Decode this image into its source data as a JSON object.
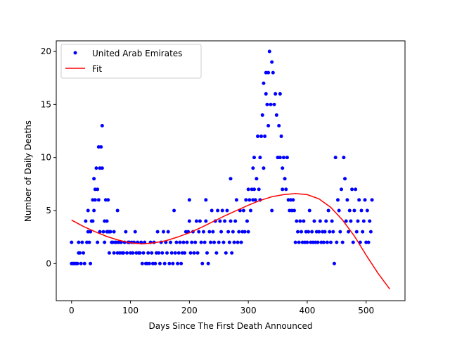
{
  "chart_data": {
    "type": "scatter",
    "title": "",
    "xlabel": "Days Since The First Death Announced",
    "ylabel": "Number of Daily Deaths",
    "xlim": [
      -26,
      566
    ],
    "ylim": [
      -3.5,
      21
    ],
    "xticks": [
      0,
      100,
      200,
      300,
      400,
      500
    ],
    "yticks": [
      0,
      5,
      10,
      15,
      20
    ],
    "grid": false,
    "legend": "top-left",
    "series": [
      {
        "name": "United Arab Emirates",
        "kind": "points",
        "color": "#0000ff",
        "points": [
          [
            0,
            0
          ],
          [
            0,
            2
          ],
          [
            2,
            0
          ],
          [
            4,
            0
          ],
          [
            6,
            0
          ],
          [
            8,
            0
          ],
          [
            10,
            0
          ],
          [
            12,
            1
          ],
          [
            12,
            2
          ],
          [
            14,
            1
          ],
          [
            16,
            0
          ],
          [
            18,
            2
          ],
          [
            20,
            1
          ],
          [
            22,
            0
          ],
          [
            24,
            4
          ],
          [
            26,
            2
          ],
          [
            28,
            3
          ],
          [
            28,
            5
          ],
          [
            30,
            2
          ],
          [
            32,
            0
          ],
          [
            32,
            3
          ],
          [
            34,
            4
          ],
          [
            36,
            6
          ],
          [
            36,
            4
          ],
          [
            38,
            8
          ],
          [
            38,
            5
          ],
          [
            40,
            7
          ],
          [
            40,
            6
          ],
          [
            42,
            9
          ],
          [
            44,
            7
          ],
          [
            44,
            2
          ],
          [
            46,
            6
          ],
          [
            46,
            11
          ],
          [
            48,
            9
          ],
          [
            48,
            3
          ],
          [
            50,
            11
          ],
          [
            52,
            13
          ],
          [
            52,
            9
          ],
          [
            54,
            3
          ],
          [
            56,
            4
          ],
          [
            56,
            2
          ],
          [
            58,
            6
          ],
          [
            60,
            4
          ],
          [
            60,
            3
          ],
          [
            62,
            6
          ],
          [
            62,
            3
          ],
          [
            64,
            1
          ],
          [
            64,
            3
          ],
          [
            66,
            3
          ],
          [
            68,
            2
          ],
          [
            70,
            2
          ],
          [
            72,
            3
          ],
          [
            72,
            1
          ],
          [
            74,
            2
          ],
          [
            76,
            2
          ],
          [
            78,
            5
          ],
          [
            78,
            1
          ],
          [
            80,
            2
          ],
          [
            82,
            1
          ],
          [
            84,
            2
          ],
          [
            86,
            1
          ],
          [
            88,
            1
          ],
          [
            90,
            2
          ],
          [
            92,
            3
          ],
          [
            94,
            1
          ],
          [
            96,
            2
          ],
          [
            98,
            2
          ],
          [
            100,
            1
          ],
          [
            102,
            2
          ],
          [
            104,
            1
          ],
          [
            106,
            2
          ],
          [
            108,
            3
          ],
          [
            110,
            1
          ],
          [
            112,
            2
          ],
          [
            114,
            1
          ],
          [
            116,
            1
          ],
          [
            118,
            2
          ],
          [
            120,
            0
          ],
          [
            122,
            1
          ],
          [
            124,
            2
          ],
          [
            126,
            0
          ],
          [
            128,
            0
          ],
          [
            130,
            1
          ],
          [
            132,
            0
          ],
          [
            134,
            2
          ],
          [
            136,
            1
          ],
          [
            138,
            0
          ],
          [
            140,
            2
          ],
          [
            142,
            0
          ],
          [
            144,
            1
          ],
          [
            146,
            3
          ],
          [
            148,
            1
          ],
          [
            150,
            0
          ],
          [
            152,
            2
          ],
          [
            154,
            1
          ],
          [
            156,
            3
          ],
          [
            158,
            0
          ],
          [
            160,
            2
          ],
          [
            162,
            1
          ],
          [
            164,
            3
          ],
          [
            166,
            0
          ],
          [
            168,
            2
          ],
          [
            170,
            1
          ],
          [
            172,
            0
          ],
          [
            174,
            5
          ],
          [
            176,
            1
          ],
          [
            178,
            2
          ],
          [
            180,
            0
          ],
          [
            182,
            1
          ],
          [
            184,
            2
          ],
          [
            186,
            0
          ],
          [
            188,
            1
          ],
          [
            190,
            2
          ],
          [
            192,
            1
          ],
          [
            194,
            3
          ],
          [
            196,
            2
          ],
          [
            198,
            3
          ],
          [
            200,
            4
          ],
          [
            200,
            6
          ],
          [
            202,
            1
          ],
          [
            204,
            2
          ],
          [
            206,
            3
          ],
          [
            208,
            1
          ],
          [
            210,
            2
          ],
          [
            212,
            4
          ],
          [
            214,
            1
          ],
          [
            216,
            3
          ],
          [
            218,
            4
          ],
          [
            220,
            2
          ],
          [
            222,
            0
          ],
          [
            224,
            3
          ],
          [
            226,
            2
          ],
          [
            228,
            6
          ],
          [
            228,
            4
          ],
          [
            230,
            1
          ],
          [
            232,
            0
          ],
          [
            234,
            3
          ],
          [
            236,
            2
          ],
          [
            238,
            5
          ],
          [
            240,
            3
          ],
          [
            242,
            2
          ],
          [
            244,
            4
          ],
          [
            246,
            1
          ],
          [
            248,
            5
          ],
          [
            250,
            2
          ],
          [
            252,
            4
          ],
          [
            254,
            3
          ],
          [
            256,
            5
          ],
          [
            258,
            2
          ],
          [
            260,
            4
          ],
          [
            262,
            1
          ],
          [
            264,
            5
          ],
          [
            266,
            3
          ],
          [
            268,
            2
          ],
          [
            270,
            8
          ],
          [
            270,
            4
          ],
          [
            272,
            1
          ],
          [
            274,
            3
          ],
          [
            276,
            2
          ],
          [
            278,
            4
          ],
          [
            280,
            6
          ],
          [
            282,
            2
          ],
          [
            284,
            3
          ],
          [
            286,
            5
          ],
          [
            288,
            2
          ],
          [
            290,
            3
          ],
          [
            292,
            5
          ],
          [
            294,
            3
          ],
          [
            296,
            6
          ],
          [
            298,
            4
          ],
          [
            300,
            7
          ],
          [
            300,
            3
          ],
          [
            302,
            6
          ],
          [
            304,
            5
          ],
          [
            306,
            7
          ],
          [
            308,
            9
          ],
          [
            308,
            6
          ],
          [
            310,
            10
          ],
          [
            310,
            7
          ],
          [
            312,
            6
          ],
          [
            314,
            8
          ],
          [
            316,
            12
          ],
          [
            318,
            7
          ],
          [
            320,
            10
          ],
          [
            320,
            6
          ],
          [
            322,
            12
          ],
          [
            324,
            14
          ],
          [
            326,
            9
          ],
          [
            326,
            17
          ],
          [
            328,
            12
          ],
          [
            330,
            16
          ],
          [
            330,
            18
          ],
          [
            332,
            15
          ],
          [
            334,
            13
          ],
          [
            334,
            18
          ],
          [
            336,
            20
          ],
          [
            338,
            15
          ],
          [
            340,
            19
          ],
          [
            340,
            5
          ],
          [
            342,
            18
          ],
          [
            344,
            15
          ],
          [
            346,
            16
          ],
          [
            348,
            14
          ],
          [
            350,
            10
          ],
          [
            352,
            13
          ],
          [
            354,
            10
          ],
          [
            354,
            16
          ],
          [
            356,
            12
          ],
          [
            358,
            9
          ],
          [
            358,
            7
          ],
          [
            360,
            10
          ],
          [
            362,
            8
          ],
          [
            364,
            7
          ],
          [
            366,
            10
          ],
          [
            368,
            6
          ],
          [
            370,
            5
          ],
          [
            372,
            6
          ],
          [
            374,
            5
          ],
          [
            376,
            6
          ],
          [
            378,
            5
          ],
          [
            380,
            2
          ],
          [
            382,
            4
          ],
          [
            384,
            3
          ],
          [
            386,
            2
          ],
          [
            388,
            4
          ],
          [
            390,
            3
          ],
          [
            392,
            2
          ],
          [
            394,
            4
          ],
          [
            396,
            2
          ],
          [
            398,
            3
          ],
          [
            400,
            2
          ],
          [
            402,
            3
          ],
          [
            404,
            5
          ],
          [
            406,
            2
          ],
          [
            408,
            3
          ],
          [
            410,
            2
          ],
          [
            412,
            4
          ],
          [
            414,
            2
          ],
          [
            416,
            3
          ],
          [
            418,
            2
          ],
          [
            420,
            3
          ],
          [
            422,
            4
          ],
          [
            424,
            2
          ],
          [
            426,
            3
          ],
          [
            428,
            2
          ],
          [
            430,
            3
          ],
          [
            432,
            4
          ],
          [
            434,
            2
          ],
          [
            436,
            5
          ],
          [
            438,
            3
          ],
          [
            440,
            2
          ],
          [
            442,
            4
          ],
          [
            444,
            3
          ],
          [
            446,
            0
          ],
          [
            448,
            10
          ],
          [
            450,
            2
          ],
          [
            452,
            6
          ],
          [
            454,
            5
          ],
          [
            456,
            3
          ],
          [
            458,
            7
          ],
          [
            460,
            2
          ],
          [
            462,
            10
          ],
          [
            464,
            8
          ],
          [
            466,
            4
          ],
          [
            468,
            6
          ],
          [
            470,
            3
          ],
          [
            472,
            5
          ],
          [
            474,
            4
          ],
          [
            476,
            7
          ],
          [
            478,
            2
          ],
          [
            480,
            5
          ],
          [
            482,
            7
          ],
          [
            484,
            3
          ],
          [
            486,
            4
          ],
          [
            488,
            6
          ],
          [
            490,
            2
          ],
          [
            492,
            5
          ],
          [
            494,
            3
          ],
          [
            496,
            4
          ],
          [
            498,
            6
          ],
          [
            500,
            2
          ],
          [
            502,
            5
          ],
          [
            504,
            2
          ],
          [
            506,
            4
          ],
          [
            508,
            3
          ],
          [
            510,
            6
          ]
        ]
      },
      {
        "name": "Fit",
        "kind": "line",
        "color": "#ff0000",
        "points": [
          [
            0,
            4.1
          ],
          [
            20,
            3.5
          ],
          [
            40,
            3.0
          ],
          [
            60,
            2.55
          ],
          [
            80,
            2.2
          ],
          [
            100,
            1.95
          ],
          [
            120,
            1.85
          ],
          [
            140,
            1.95
          ],
          [
            160,
            2.15
          ],
          [
            180,
            2.5
          ],
          [
            200,
            2.9
          ],
          [
            220,
            3.4
          ],
          [
            240,
            3.95
          ],
          [
            260,
            4.5
          ],
          [
            280,
            5.0
          ],
          [
            300,
            5.5
          ],
          [
            320,
            5.95
          ],
          [
            340,
            6.3
          ],
          [
            360,
            6.5
          ],
          [
            380,
            6.6
          ],
          [
            400,
            6.5
          ],
          [
            420,
            6.1
          ],
          [
            440,
            5.3
          ],
          [
            460,
            4.1
          ],
          [
            480,
            2.6
          ],
          [
            500,
            0.8
          ],
          [
            520,
            -0.9
          ],
          [
            540,
            -2.4
          ]
        ]
      }
    ]
  }
}
